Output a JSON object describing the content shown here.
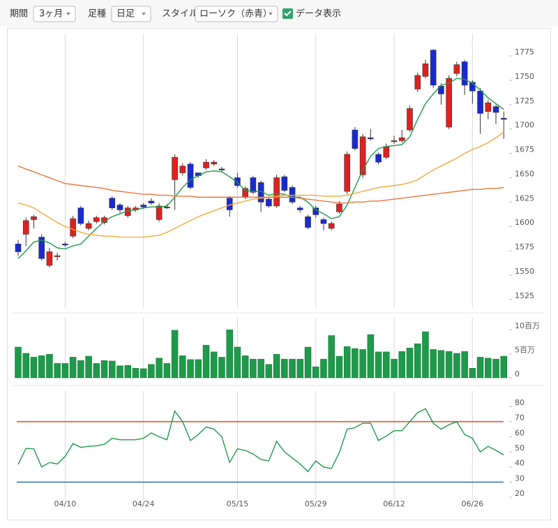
{
  "toolbar": {
    "period_label": "期間",
    "period_value": "3ヶ月",
    "bar_label": "足種",
    "bar_value": "日足",
    "style_label": "スタイル",
    "style_value": "ローソク（赤青）",
    "data_toggle": "データ表示"
  },
  "chart_data": [
    {
      "type": "candlestick",
      "up_color": "#e02020",
      "down_color": "#1a2ad0",
      "open": [
        1582,
        1592,
        1607,
        1589,
        1560,
        1569,
        1582,
        1590,
        1619,
        1598,
        1605,
        1604,
        1629,
        1622,
        1611,
        1617,
        1622,
        1626,
        1607,
        1620,
        1648,
        1655,
        1664,
        1655,
        1660,
        1664,
        1659,
        1629,
        1650,
        1630,
        1650,
        1645,
        1628,
        1621,
        1651,
        1640,
        1619,
        1610,
        1619,
        1607,
        1598,
        1615,
        1636,
        1699,
        1653,
        1691,
        1674,
        1671,
        1687,
        1688,
        1699,
        1741,
        1754,
        1781,
        1744,
        1702,
        1757,
        1769,
        1748,
        1739,
        1718,
        1723,
        1711
      ],
      "close": [
        1574,
        1606,
        1610,
        1567,
        1574,
        1570,
        1581,
        1608,
        1603,
        1603,
        1609,
        1609,
        1619,
        1617,
        1619,
        1619,
        1620,
        1624,
        1621,
        1620,
        1671,
        1662,
        1640,
        1652,
        1666,
        1666,
        1658,
        1617,
        1642,
        1639,
        1635,
        1625,
        1621,
        1650,
        1637,
        1625,
        1617,
        1599,
        1612,
        1603,
        1603,
        1623,
        1674,
        1680,
        1692,
        1690,
        1666,
        1682,
        1688,
        1691,
        1721,
        1755,
        1767,
        1745,
        1736,
        1752,
        1766,
        1745,
        1739,
        1716,
        1727,
        1717,
        1710
      ],
      "high": [
        1586,
        1609,
        1612,
        1592,
        1578,
        1573,
        1584,
        1611,
        1621,
        1606,
        1611,
        1611,
        1631,
        1624,
        1621,
        1621,
        1624,
        1629,
        1624,
        1623,
        1674,
        1665,
        1666,
        1655,
        1669,
        1668,
        1661,
        1631,
        1655,
        1641,
        1652,
        1647,
        1630,
        1653,
        1653,
        1642,
        1621,
        1612,
        1621,
        1609,
        1605,
        1626,
        1677,
        1702,
        1695,
        1700,
        1676,
        1685,
        1693,
        1699,
        1724,
        1758,
        1771,
        1782,
        1747,
        1755,
        1769,
        1771,
        1750,
        1742,
        1730,
        1725,
        1718
      ],
      "low": [
        1570,
        1580,
        1598,
        1565,
        1558,
        1565,
        1579,
        1588,
        1601,
        1596,
        1603,
        1602,
        1617,
        1614,
        1609,
        1615,
        1618,
        1622,
        1605,
        1618,
        1617,
        1652,
        1638,
        1650,
        1658,
        1662,
        1656,
        1610,
        1640,
        1628,
        1633,
        1615,
        1619,
        1619,
        1635,
        1623,
        1614,
        1597,
        1609,
        1596,
        1596,
        1613,
        1633,
        1678,
        1650,
        1688,
        1664,
        1669,
        1685,
        1686,
        1697,
        1738,
        1752,
        1742,
        1725,
        1700,
        1754,
        1735,
        1726,
        1695,
        1710,
        1705,
        1690
      ],
      "series": [
        {
          "color": "#1e9a4a",
          "values": [
            1567,
            1575,
            1584,
            1586,
            1583,
            1578,
            1577,
            1580,
            1582,
            1590,
            1598,
            1605,
            1610,
            1613,
            1616,
            1617,
            1619,
            1620,
            1620,
            1621,
            1630,
            1640,
            1648,
            1652,
            1656,
            1657,
            1656,
            1651,
            1645,
            1637,
            1636,
            1636,
            1632,
            1634,
            1633,
            1630,
            1630,
            1625,
            1617,
            1613,
            1608,
            1610,
            1622,
            1640,
            1658,
            1672,
            1680,
            1682,
            1683,
            1684,
            1692,
            1710,
            1726,
            1736,
            1745,
            1747,
            1752,
            1751,
            1747,
            1740,
            1732,
            1726,
            1720
          ]
        },
        {
          "color": "#f2a93b",
          "values": [
            1624,
            1622,
            1619,
            1614,
            1609,
            1604,
            1600,
            1597,
            1594,
            1592,
            1591,
            1590,
            1590,
            1589,
            1589,
            1589,
            1589,
            1590,
            1591,
            1594,
            1598,
            1602,
            1606,
            1610,
            1613,
            1616,
            1619,
            1622,
            1624,
            1626,
            1628,
            1629,
            1630,
            1631,
            1632,
            1632,
            1632,
            1632,
            1632,
            1631,
            1631,
            1631,
            1632,
            1634,
            1636,
            1638,
            1640,
            1641,
            1642,
            1643,
            1645,
            1648,
            1653,
            1658,
            1662,
            1666,
            1670,
            1675,
            1679,
            1682,
            1686,
            1691,
            1697
          ]
        },
        {
          "color": "#e8743a",
          "values": [
            1662,
            1659,
            1656,
            1653,
            1650,
            1647,
            1644,
            1643,
            1642,
            1641,
            1640,
            1639,
            1637,
            1636,
            1635,
            1634,
            1633,
            1633,
            1632,
            1632,
            1631,
            1631,
            1631,
            1630,
            1630,
            1630,
            1630,
            1630,
            1630,
            1630,
            1630,
            1630,
            1630,
            1630,
            1630,
            1630,
            1629,
            1628,
            1627,
            1626,
            1625,
            1624,
            1624,
            1625,
            1625,
            1626,
            1626,
            1627,
            1628,
            1629,
            1630,
            1631,
            1632,
            1633,
            1634,
            1635,
            1636,
            1637,
            1638,
            1638,
            1639,
            1639,
            1640
          ]
        }
      ],
      "ylim": [
        1517,
        1798
      ],
      "yticks": [
        1525,
        1550,
        1575,
        1600,
        1625,
        1650,
        1675,
        1700,
        1725,
        1750,
        1775
      ]
    },
    {
      "type": "bar",
      "color": "#1e9a4a",
      "values": [
        6400000,
        5100000,
        4300000,
        4600000,
        4900000,
        3000000,
        3000000,
        4300000,
        3600000,
        4500000,
        3000000,
        3600000,
        3500000,
        2500000,
        2600000,
        2000000,
        1900000,
        2800000,
        4100000,
        3000000,
        9900000,
        4600000,
        3800000,
        3800000,
        6800000,
        5400000,
        4300000,
        10000000,
        6400000,
        4600000,
        3900000,
        3900000,
        2800000,
        4900000,
        3900000,
        3900000,
        3900000,
        6400000,
        2300000,
        3900000,
        8800000,
        4500000,
        6500000,
        6100000,
        5900000,
        9000000,
        5400000,
        5400000,
        3900000,
        5500000,
        6200000,
        7100000,
        9600000,
        5900000,
        5700000,
        5500000,
        5100000,
        5500000,
        2000000,
        4300000,
        4100000,
        3900000,
        4500000
      ],
      "ylim": [
        0,
        12500000
      ],
      "yticks": [
        0,
        {
          "value": 5000000,
          "label": "5百万"
        },
        {
          "value": 10000000,
          "label": "10百万"
        }
      ]
    },
    {
      "type": "line",
      "color": "#1e9a4a",
      "categories": [
        null,
        null,
        null,
        null,
        null,
        null,
        "04/10",
        null,
        null,
        null,
        null,
        null,
        null,
        null,
        null,
        null,
        "04/24",
        null,
        null,
        null,
        null,
        null,
        null,
        null,
        null,
        null,
        null,
        null,
        "05/15",
        null,
        null,
        null,
        null,
        null,
        null,
        null,
        null,
        null,
        "05/29",
        null,
        null,
        null,
        null,
        null,
        null,
        null,
        null,
        null,
        "06/12",
        null,
        null,
        null,
        null,
        null,
        null,
        null,
        null,
        null,
        "06/26",
        null,
        null,
        null,
        null
      ],
      "values": [
        41.7,
        52.3,
        52,
        40,
        43,
        42,
        47,
        55.5,
        53,
        53.7,
        54,
        55,
        59,
        58,
        58,
        58,
        59,
        62.5,
        60,
        58,
        77,
        70,
        57.5,
        61.5,
        66.5,
        65,
        60,
        43,
        52,
        51,
        48.6,
        45,
        44,
        57,
        50,
        46,
        42,
        37,
        44,
        40,
        39,
        49.5,
        65,
        66,
        69,
        69,
        57.5,
        60.5,
        64,
        64,
        70,
        76,
        78.5,
        69,
        65,
        68,
        70,
        61.5,
        59,
        50,
        53.7,
        51,
        48
      ],
      "reference_lines": [
        {
          "value": 70,
          "color": "#e8502a"
        },
        {
          "value": 30,
          "color": "#3a7bc8"
        }
      ],
      "ylim": [
        18.6,
        90.2
      ],
      "yticks": [
        20,
        30,
        40,
        50,
        60,
        70,
        80
      ]
    }
  ]
}
